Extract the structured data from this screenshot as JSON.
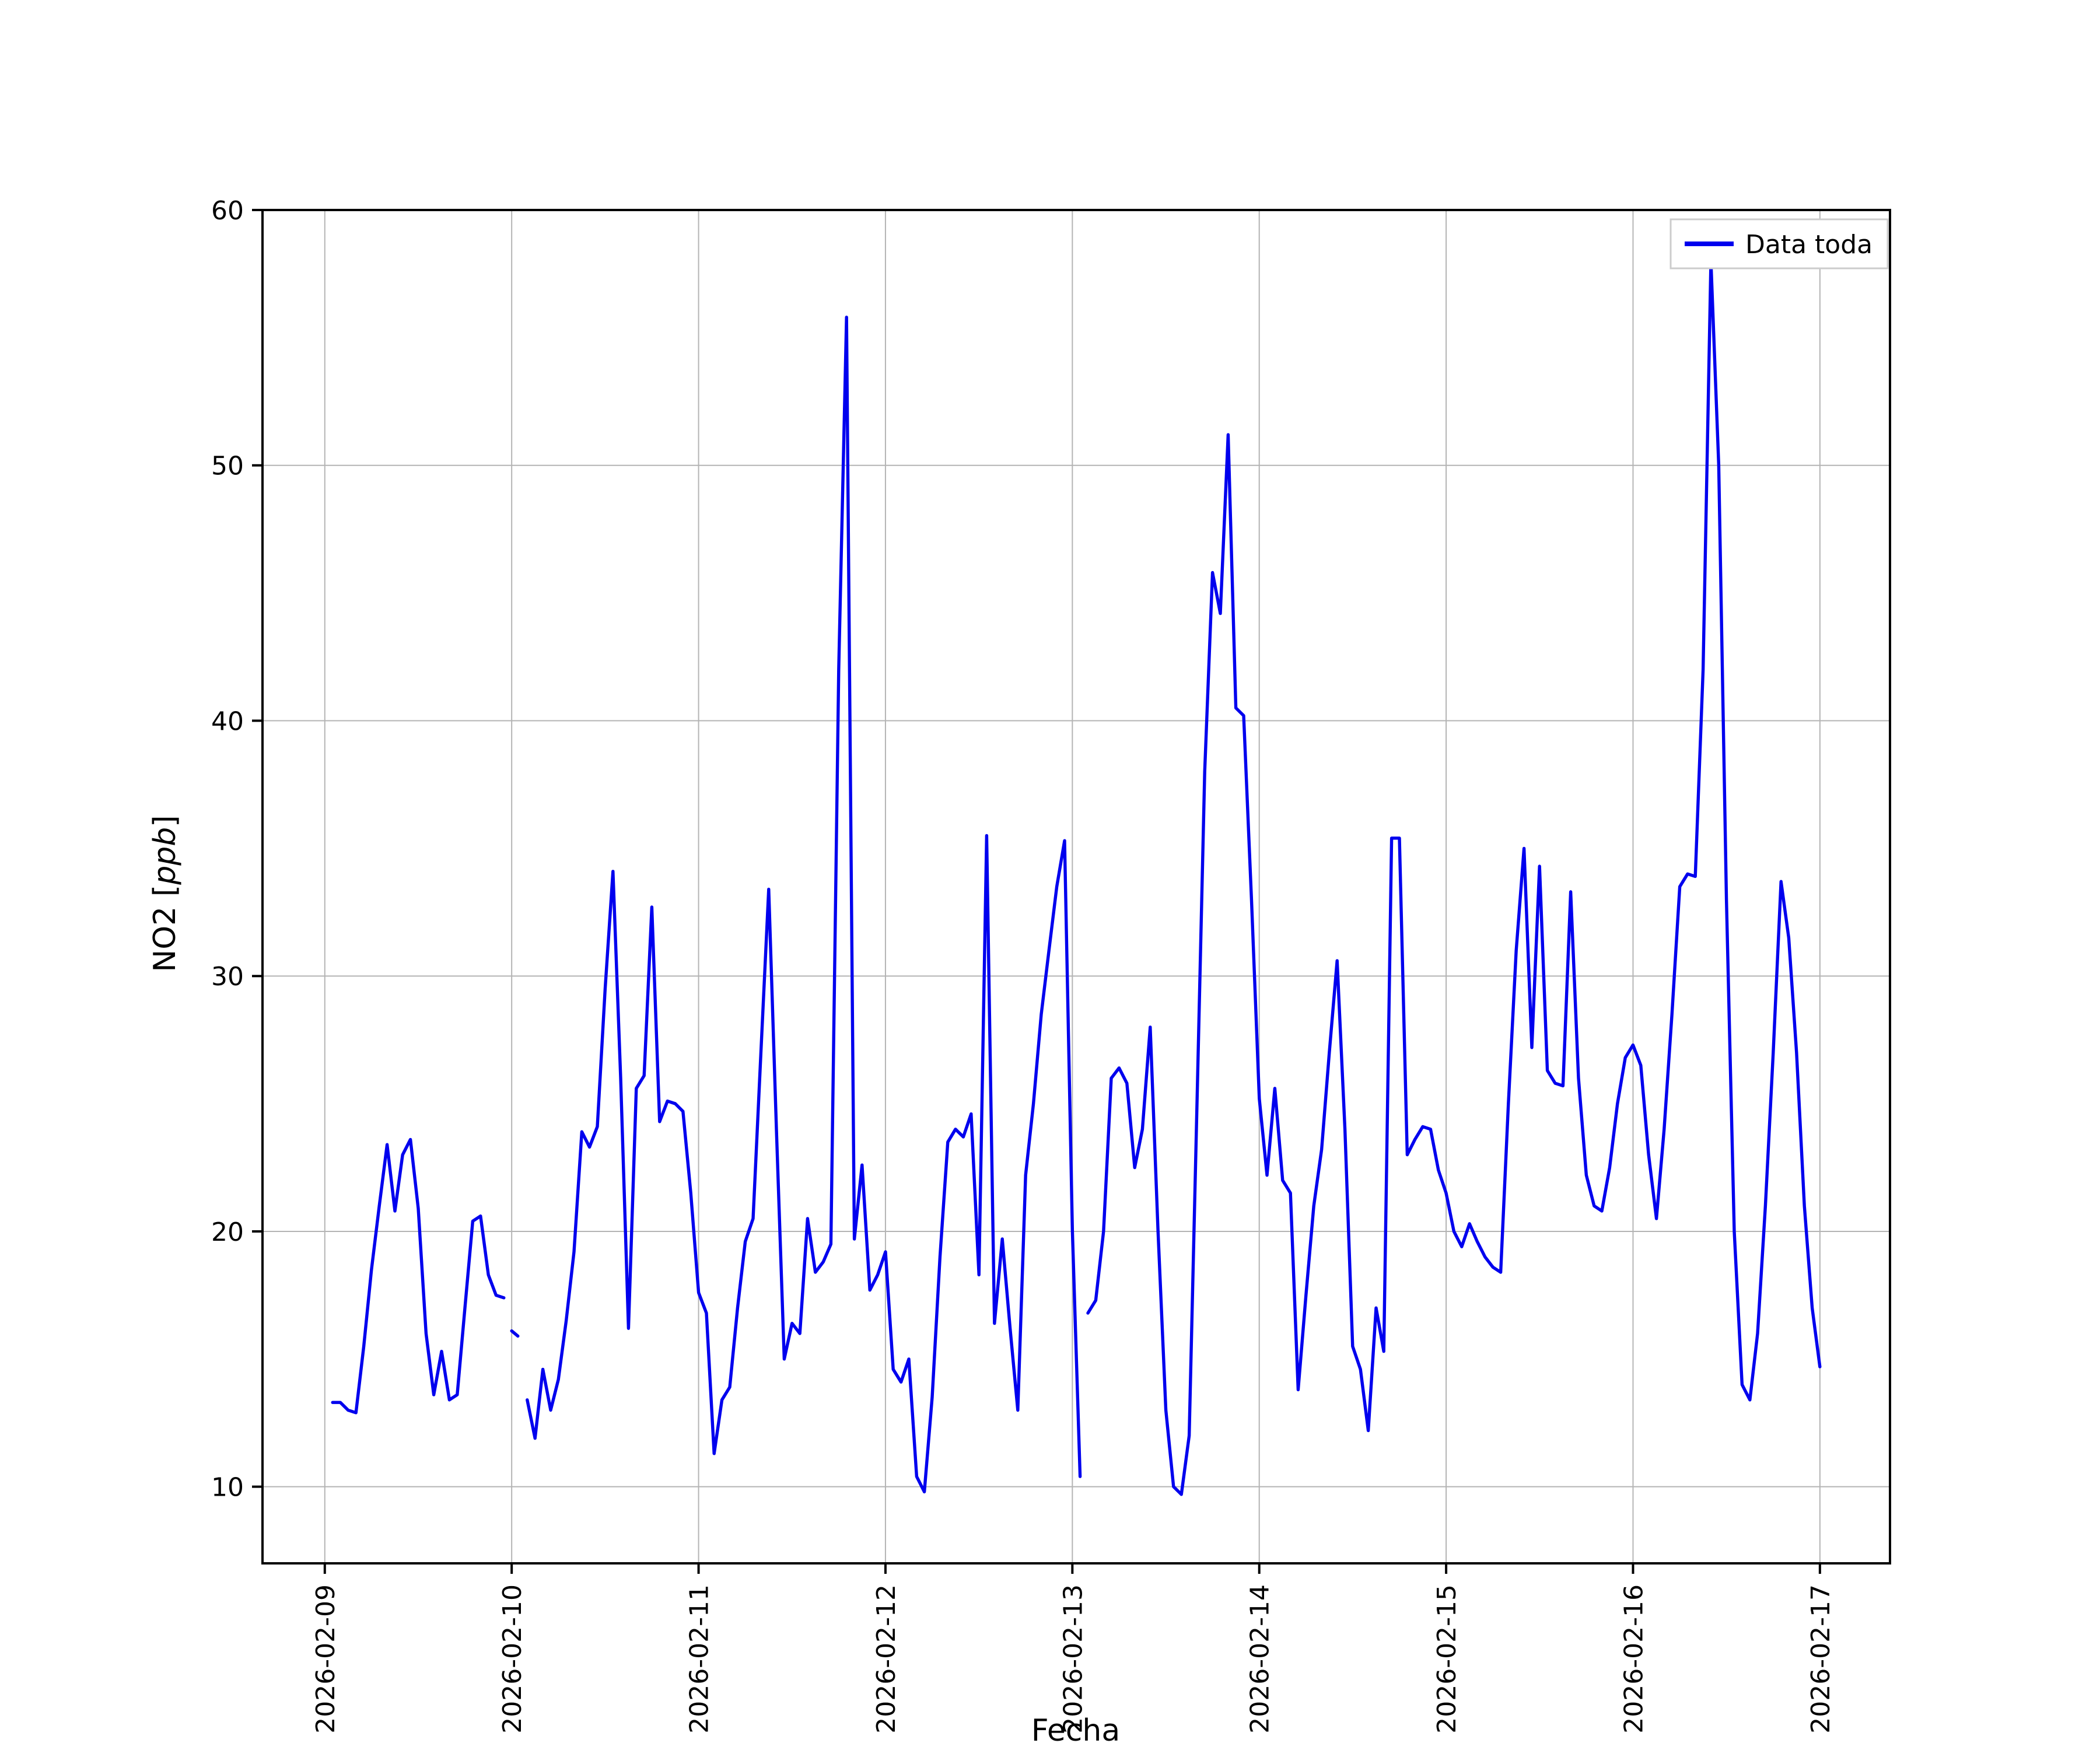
{
  "figure": {
    "background": "#ffffff",
    "grid_color": "#b4b4b4",
    "spine_color": "#000000"
  },
  "legend": {
    "label": "Data toda",
    "line_color": "#0000ee"
  },
  "chart_data": {
    "type": "line",
    "title": "",
    "xlabel": "Fecha",
    "ylabel": "NO2 [ppb]",
    "ylabel_prefix": "NO2 [",
    "ylabel_italic": "ppb",
    "ylabel_suffix": "]",
    "line_color": "#0000ee",
    "grid": true,
    "legend_position": "upper right",
    "ylim": [
      7,
      60
    ],
    "xlim_hours": [
      -8,
      201
    ],
    "yticks": [
      10,
      20,
      30,
      40,
      50,
      60
    ],
    "xticks_hours": [
      0,
      24,
      48,
      72,
      96,
      120,
      144,
      168,
      192
    ],
    "xtick_labels": [
      "2026-02-09",
      "2026-02-10",
      "2026-02-11",
      "2026-02-12",
      "2026-02-13",
      "2026-02-14",
      "2026-02-15",
      "2026-02-16",
      "2026-02-17"
    ],
    "series_name": "Data toda",
    "x_unit": "hours since 2026-02-09 00:00",
    "points": [
      [
        1,
        13.3
      ],
      [
        2,
        13.3
      ],
      [
        3,
        13.0
      ],
      [
        4,
        12.9
      ],
      [
        5,
        15.5
      ],
      [
        6,
        18.5
      ],
      [
        7,
        21.0
      ],
      [
        8,
        23.4
      ],
      [
        9,
        20.8
      ],
      [
        10,
        23.0
      ],
      [
        11,
        23.6
      ],
      [
        12,
        20.9
      ],
      [
        13,
        16.0
      ],
      [
        14,
        13.6
      ],
      [
        15,
        15.3
      ],
      [
        16,
        13.4
      ],
      [
        17,
        13.6
      ],
      [
        18,
        17.0
      ],
      [
        19,
        20.4
      ],
      [
        20,
        20.6
      ],
      [
        21,
        18.3
      ],
      [
        22,
        17.5
      ],
      [
        23,
        17.4
      ],
      [
        23.5,
        null
      ],
      [
        24,
        16.1
      ],
      [
        24.8,
        15.9
      ],
      [
        25.2,
        null
      ],
      [
        26,
        13.4
      ],
      [
        27,
        11.9
      ],
      [
        28,
        14.6
      ],
      [
        29,
        13.0
      ],
      [
        30,
        14.2
      ],
      [
        31,
        16.5
      ],
      [
        32,
        19.2
      ],
      [
        33,
        23.9
      ],
      [
        34,
        23.3
      ],
      [
        35,
        24.1
      ],
      [
        36,
        29.5
      ],
      [
        37,
        34.1
      ],
      [
        38,
        26.0
      ],
      [
        39,
        16.2
      ],
      [
        40,
        25.6
      ],
      [
        41,
        26.1
      ],
      [
        42,
        32.7
      ],
      [
        43,
        24.3
      ],
      [
        44,
        25.1
      ],
      [
        45,
        25.0
      ],
      [
        46,
        24.7
      ],
      [
        47,
        21.5
      ],
      [
        48,
        17.6
      ],
      [
        49,
        16.8
      ],
      [
        50,
        11.3
      ],
      [
        51,
        13.4
      ],
      [
        52,
        13.9
      ],
      [
        53,
        17.0
      ],
      [
        54,
        19.6
      ],
      [
        55,
        20.5
      ],
      [
        56,
        27.0
      ],
      [
        57,
        33.4
      ],
      [
        58,
        24.0
      ],
      [
        59,
        15.0
      ],
      [
        60,
        16.4
      ],
      [
        61,
        16.0
      ],
      [
        62,
        20.5
      ],
      [
        63,
        18.4
      ],
      [
        64,
        18.8
      ],
      [
        65,
        19.5
      ],
      [
        66,
        42.0
      ],
      [
        67,
        55.8
      ],
      [
        68,
        19.7
      ],
      [
        69,
        22.6
      ],
      [
        70,
        17.7
      ],
      [
        71,
        18.3
      ],
      [
        72,
        19.2
      ],
      [
        73,
        14.6
      ],
      [
        74,
        14.1
      ],
      [
        75,
        15.0
      ],
      [
        76,
        10.4
      ],
      [
        77,
        9.8
      ],
      [
        78,
        13.5
      ],
      [
        79,
        19.0
      ],
      [
        80,
        23.5
      ],
      [
        81,
        24.0
      ],
      [
        82,
        23.7
      ],
      [
        83,
        24.6
      ],
      [
        84,
        18.3
      ],
      [
        85,
        35.5
      ],
      [
        86,
        16.4
      ],
      [
        87,
        19.7
      ],
      [
        88,
        16.2
      ],
      [
        89,
        13.0
      ],
      [
        90,
        22.2
      ],
      [
        91,
        25.0
      ],
      [
        92,
        28.5
      ],
      [
        93,
        31.0
      ],
      [
        94,
        33.5
      ],
      [
        95,
        35.3
      ],
      [
        96,
        20.0
      ],
      [
        97,
        10.4
      ],
      [
        97.5,
        null
      ],
      [
        98,
        16.8
      ],
      [
        99,
        17.3
      ],
      [
        100,
        20.0
      ],
      [
        101,
        26.0
      ],
      [
        102,
        26.4
      ],
      [
        103,
        25.8
      ],
      [
        104,
        22.5
      ],
      [
        105,
        24.0
      ],
      [
        106,
        28.0
      ],
      [
        107,
        20.0
      ],
      [
        108,
        13.0
      ],
      [
        109,
        10.0
      ],
      [
        110,
        9.7
      ],
      [
        111,
        12.0
      ],
      [
        112,
        25.0
      ],
      [
        113,
        38.0
      ],
      [
        114,
        45.8
      ],
      [
        115,
        44.2
      ],
      [
        116,
        51.2
      ],
      [
        117,
        40.5
      ],
      [
        118,
        40.2
      ],
      [
        119,
        33.0
      ],
      [
        120,
        25.2
      ],
      [
        121,
        22.2
      ],
      [
        122,
        25.6
      ],
      [
        123,
        22.0
      ],
      [
        124,
        21.5
      ],
      [
        125,
        13.8
      ],
      [
        126,
        17.5
      ],
      [
        127,
        21.0
      ],
      [
        128,
        23.2
      ],
      [
        129,
        27.0
      ],
      [
        130,
        30.6
      ],
      [
        131,
        24.0
      ],
      [
        132,
        15.5
      ],
      [
        133,
        14.6
      ],
      [
        134,
        12.2
      ],
      [
        135,
        17.0
      ],
      [
        136,
        15.3
      ],
      [
        137,
        35.4
      ],
      [
        138,
        35.4
      ],
      [
        139,
        23.0
      ],
      [
        140,
        23.6
      ],
      [
        141,
        24.1
      ],
      [
        142,
        24.0
      ],
      [
        143,
        22.4
      ],
      [
        144,
        21.5
      ],
      [
        145,
        20.0
      ],
      [
        146,
        19.4
      ],
      [
        147,
        20.3
      ],
      [
        148,
        19.6
      ],
      [
        149,
        19.0
      ],
      [
        150,
        18.6
      ],
      [
        151,
        18.4
      ],
      [
        152,
        25.0
      ],
      [
        153,
        31.0
      ],
      [
        154,
        35.0
      ],
      [
        155,
        27.2
      ],
      [
        156,
        34.3
      ],
      [
        157,
        26.3
      ],
      [
        158,
        25.8
      ],
      [
        159,
        25.7
      ],
      [
        160,
        33.3
      ],
      [
        161,
        26.0
      ],
      [
        162,
        22.2
      ],
      [
        163,
        21.0
      ],
      [
        164,
        20.8
      ],
      [
        165,
        22.5
      ],
      [
        166,
        25.0
      ],
      [
        167,
        26.8
      ],
      [
        168,
        27.3
      ],
      [
        169,
        26.5
      ],
      [
        170,
        23.0
      ],
      [
        171,
        20.5
      ],
      [
        172,
        24.0
      ],
      [
        173,
        28.5
      ],
      [
        174,
        33.5
      ],
      [
        175,
        34.0
      ],
      [
        176,
        33.9
      ],
      [
        177,
        42.0
      ],
      [
        178,
        58.0
      ],
      [
        179,
        50.0
      ],
      [
        180,
        33.0
      ],
      [
        181,
        20.0
      ],
      [
        182,
        14.0
      ],
      [
        183,
        13.4
      ],
      [
        184,
        16.0
      ],
      [
        185,
        21.0
      ],
      [
        186,
        27.0
      ],
      [
        187,
        33.7
      ],
      [
        188,
        31.5
      ],
      [
        189,
        27.0
      ],
      [
        190,
        21.0
      ],
      [
        191,
        17.0
      ],
      [
        192,
        14.7
      ]
    ]
  }
}
